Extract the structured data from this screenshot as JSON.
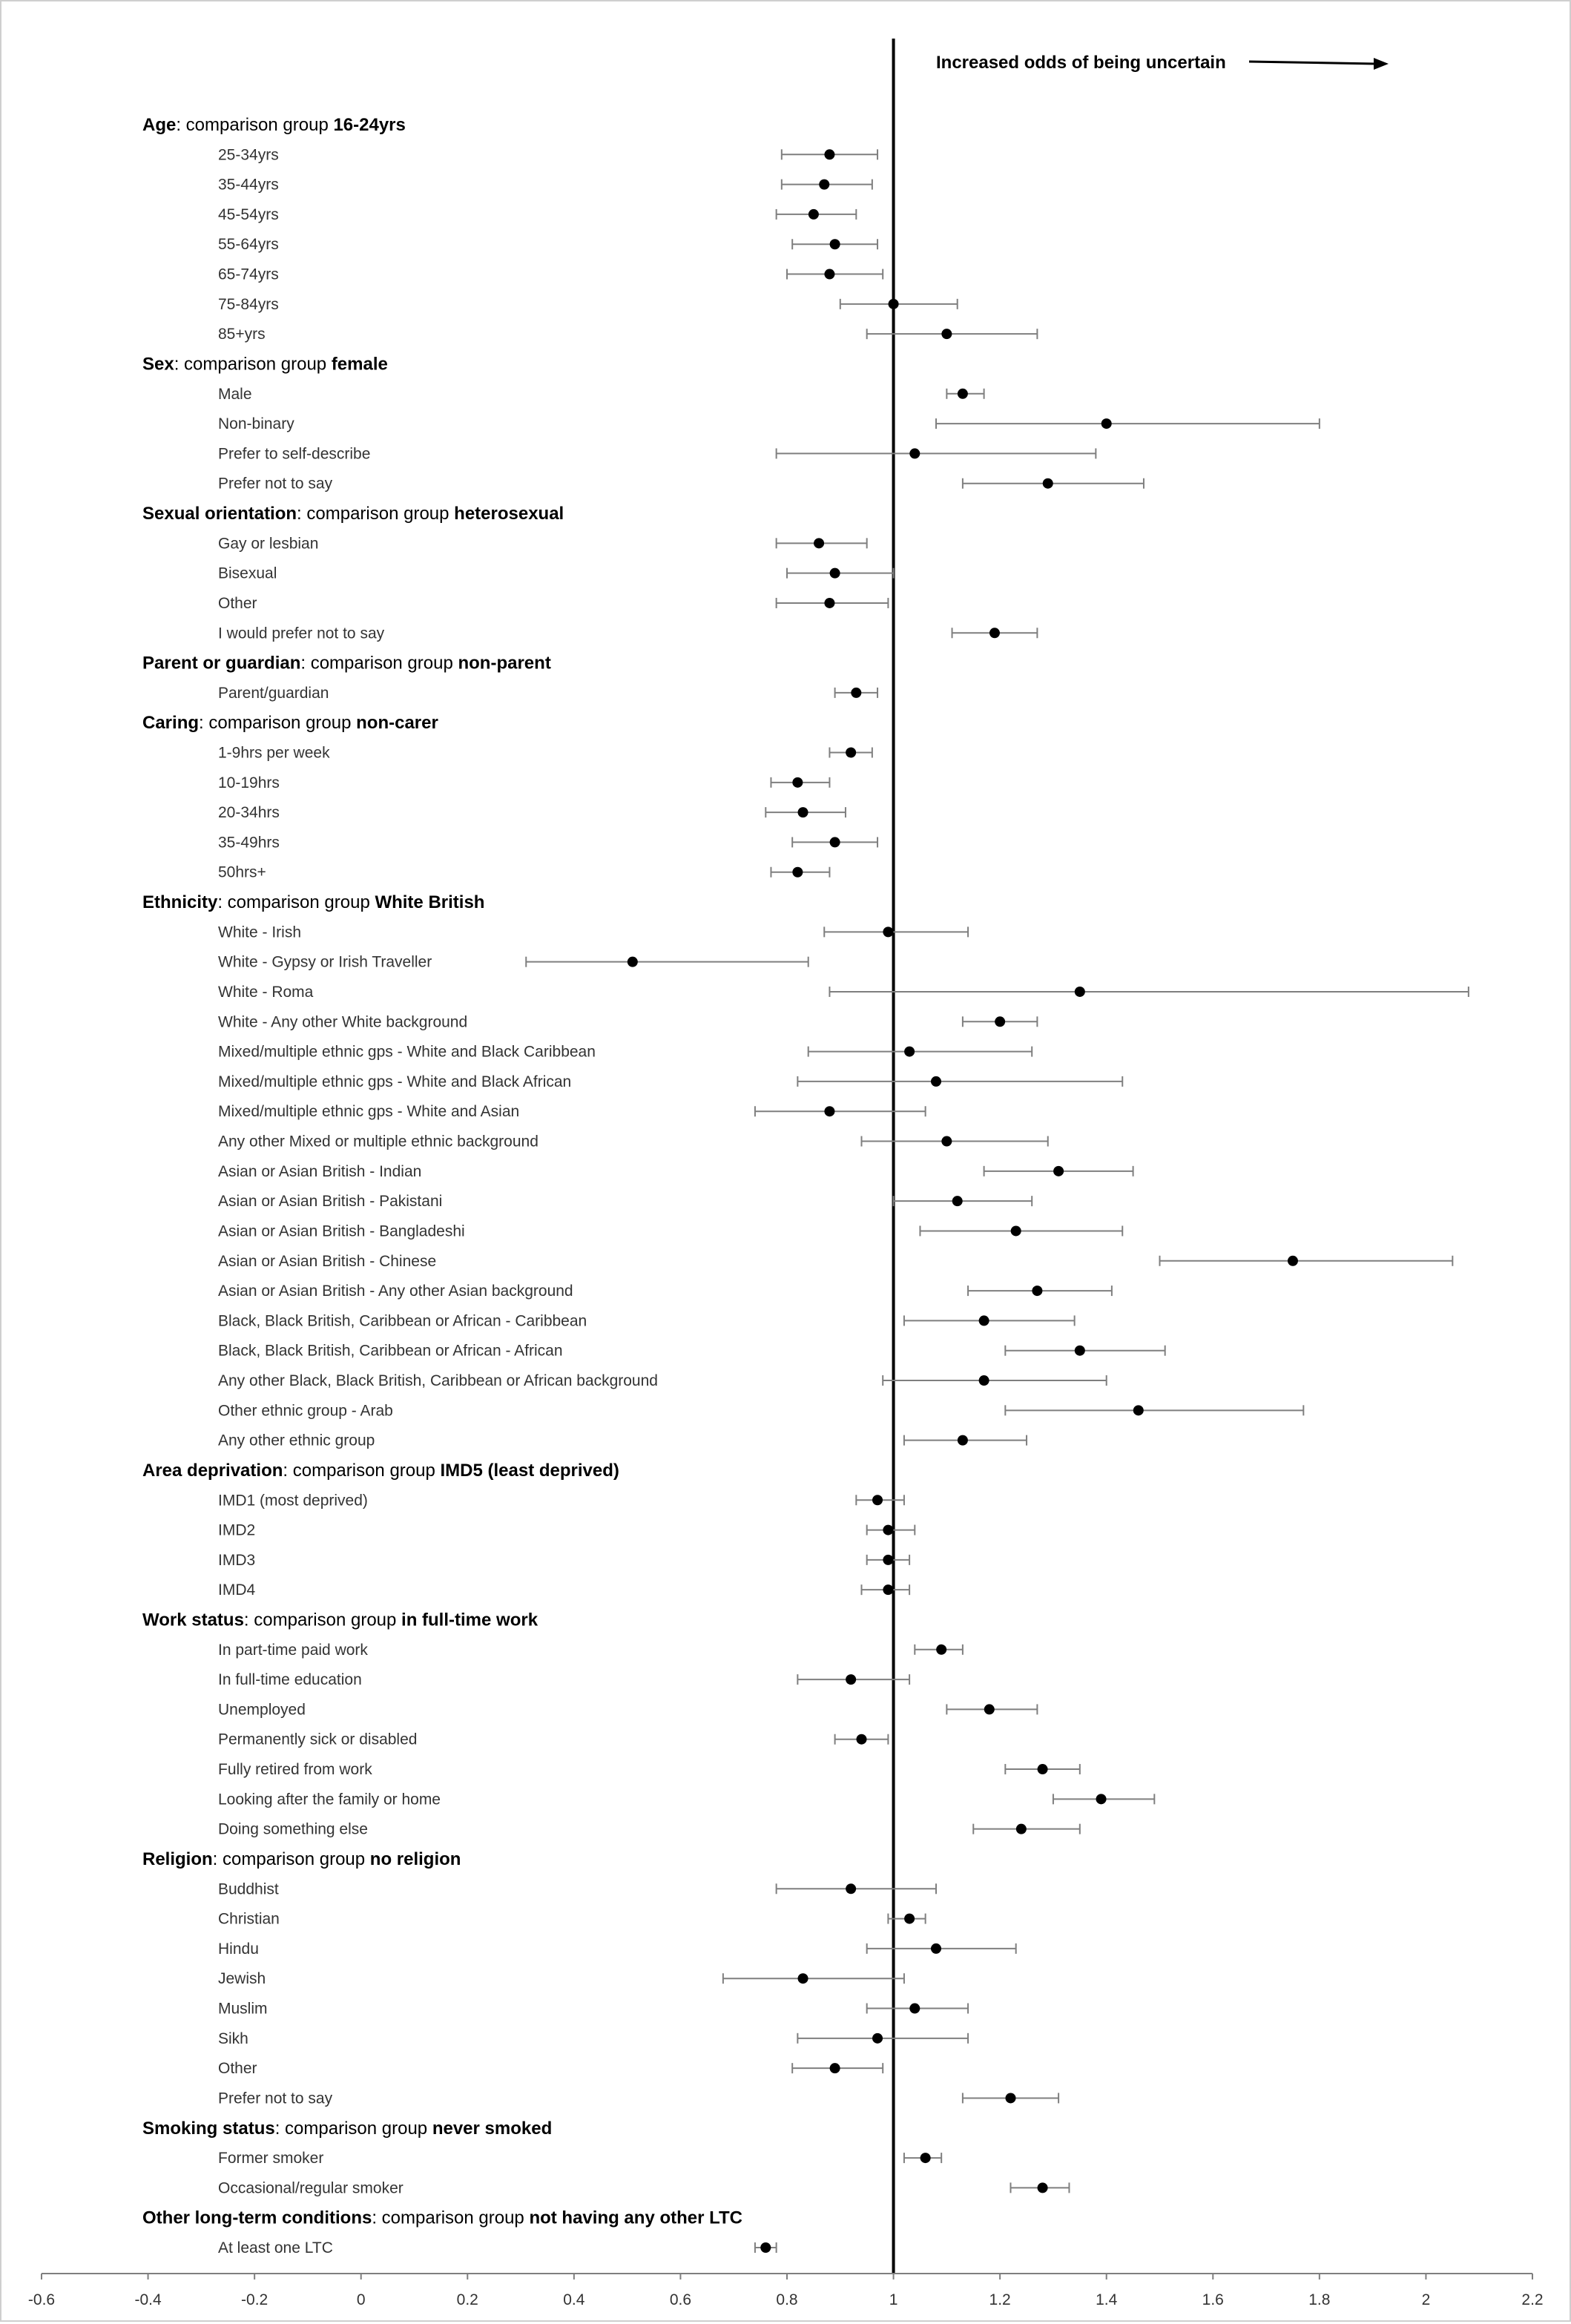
{
  "chart_data": {
    "type": "forest-plot",
    "annotation": "Increased odds of being uncertain",
    "reference_line": 1,
    "xlim": [
      -0.6,
      2.2
    ],
    "x_ticks": [
      "-0.6",
      "-0.4",
      "-0.2",
      "0",
      "0.2",
      "0.4",
      "0.6",
      "0.8",
      "1",
      "1.2",
      "1.4",
      "1.6",
      "1.8",
      "2",
      "2.2"
    ],
    "groups": [
      {
        "name": "Age",
        "comparison": "comparison group ",
        "reference": "16-24yrs",
        "rows": [
          {
            "label": "25-34yrs",
            "or": 0.88,
            "lo": 0.79,
            "hi": 0.97
          },
          {
            "label": "35-44yrs",
            "or": 0.87,
            "lo": 0.79,
            "hi": 0.96
          },
          {
            "label": "45-54yrs",
            "or": 0.85,
            "lo": 0.78,
            "hi": 0.93
          },
          {
            "label": "55-64yrs",
            "or": 0.89,
            "lo": 0.81,
            "hi": 0.97
          },
          {
            "label": "65-74yrs",
            "or": 0.88,
            "lo": 0.8,
            "hi": 0.98
          },
          {
            "label": "75-84yrs",
            "or": 1.0,
            "lo": 0.9,
            "hi": 1.12
          },
          {
            "label": "85+yrs",
            "or": 1.1,
            "lo": 0.95,
            "hi": 1.27
          }
        ]
      },
      {
        "name": "Sex",
        "comparison": "comparison group ",
        "reference": "female",
        "rows": [
          {
            "label": "Male",
            "or": 1.13,
            "lo": 1.1,
            "hi": 1.17
          },
          {
            "label": "Non-binary",
            "or": 1.4,
            "lo": 1.08,
            "hi": 1.8
          },
          {
            "label": "Prefer to self-describe",
            "or": 1.04,
            "lo": 0.78,
            "hi": 1.38
          },
          {
            "label": "Prefer not to say",
            "or": 1.29,
            "lo": 1.13,
            "hi": 1.47
          }
        ]
      },
      {
        "name": "Sexual orientation",
        "comparison": "comparison group ",
        "reference": "heterosexual",
        "rows": [
          {
            "label": "Gay or lesbian",
            "or": 0.86,
            "lo": 0.78,
            "hi": 0.95
          },
          {
            "label": "Bisexual",
            "or": 0.89,
            "lo": 0.8,
            "hi": 1.0
          },
          {
            "label": "Other",
            "or": 0.88,
            "lo": 0.78,
            "hi": 0.99
          },
          {
            "label": "I would prefer not to say",
            "or": 1.19,
            "lo": 1.11,
            "hi": 1.27
          }
        ]
      },
      {
        "name": "Parent or guardian",
        "comparison": "comparison group ",
        "reference": "non-parent",
        "rows": [
          {
            "label": "Parent/guardian",
            "or": 0.93,
            "lo": 0.89,
            "hi": 0.97
          }
        ]
      },
      {
        "name": "Caring",
        "comparison": "comparison group ",
        "reference": "non-carer",
        "rows": [
          {
            "label": "1-9hrs per week",
            "or": 0.92,
            "lo": 0.88,
            "hi": 0.96
          },
          {
            "label": "10-19hrs",
            "or": 0.82,
            "lo": 0.77,
            "hi": 0.88
          },
          {
            "label": "20-34hrs",
            "or": 0.83,
            "lo": 0.76,
            "hi": 0.91
          },
          {
            "label": "35-49hrs",
            "or": 0.89,
            "lo": 0.81,
            "hi": 0.97
          },
          {
            "label": "50hrs+",
            "or": 0.82,
            "lo": 0.77,
            "hi": 0.88
          }
        ]
      },
      {
        "name": "Ethnicity",
        "comparison": "comparison group ",
        "reference": "White British",
        "rows": [
          {
            "label": "White - Irish",
            "or": 0.99,
            "lo": 0.87,
            "hi": 1.14
          },
          {
            "label": "White - Gypsy or Irish Traveller",
            "or": 0.51,
            "lo": 0.31,
            "hi": 0.84
          },
          {
            "label": "White - Roma",
            "or": 1.35,
            "lo": 0.88,
            "hi": 2.08
          },
          {
            "label": "White - Any other White background",
            "or": 1.2,
            "lo": 1.13,
            "hi": 1.27
          },
          {
            "label": "Mixed/multiple ethnic gps - White and Black Caribbean",
            "or": 1.03,
            "lo": 0.84,
            "hi": 1.26
          },
          {
            "label": "Mixed/multiple ethnic gps - White and Black African",
            "or": 1.08,
            "lo": 0.82,
            "hi": 1.43
          },
          {
            "label": "Mixed/multiple ethnic gps - White and Asian",
            "or": 0.88,
            "lo": 0.74,
            "hi": 1.06
          },
          {
            "label": "Any other Mixed or multiple ethnic background",
            "or": 1.1,
            "lo": 0.94,
            "hi": 1.29
          },
          {
            "label": "Asian or Asian British - Indian",
            "or": 1.31,
            "lo": 1.17,
            "hi": 1.45
          },
          {
            "label": "Asian or Asian British - Pakistani",
            "or": 1.12,
            "lo": 1.0,
            "hi": 1.26
          },
          {
            "label": "Asian or Asian British - Bangladeshi",
            "or": 1.23,
            "lo": 1.05,
            "hi": 1.43
          },
          {
            "label": "Asian or Asian British - Chinese",
            "or": 1.75,
            "lo": 1.5,
            "hi": 2.05
          },
          {
            "label": "Asian or Asian British - Any other Asian background",
            "or": 1.27,
            "lo": 1.14,
            "hi": 1.41
          },
          {
            "label": "Black, Black British, Caribbean or African - Caribbean",
            "or": 1.17,
            "lo": 1.02,
            "hi": 1.34
          },
          {
            "label": "Black, Black British, Caribbean or African - African",
            "or": 1.35,
            "lo": 1.21,
            "hi": 1.51
          },
          {
            "label": "Any other Black, Black British, Caribbean or African background",
            "or": 1.17,
            "lo": 0.98,
            "hi": 1.4
          },
          {
            "label": "Other ethnic group - Arab",
            "or": 1.46,
            "lo": 1.21,
            "hi": 1.77
          },
          {
            "label": "Any other ethnic group",
            "or": 1.13,
            "lo": 1.02,
            "hi": 1.25
          }
        ]
      },
      {
        "name": "Area deprivation",
        "comparison": "comparison group ",
        "reference": "IMD5 (least deprived)",
        "rows": [
          {
            "label": "IMD1 (most deprived)",
            "or": 0.97,
            "lo": 0.93,
            "hi": 1.02
          },
          {
            "label": "IMD2",
            "or": 0.99,
            "lo": 0.95,
            "hi": 1.04
          },
          {
            "label": "IMD3",
            "or": 0.99,
            "lo": 0.95,
            "hi": 1.03
          },
          {
            "label": "IMD4",
            "or": 0.99,
            "lo": 0.94,
            "hi": 1.03
          }
        ]
      },
      {
        "name": "Work status",
        "comparison": "comparison group ",
        "reference": "in full-time work",
        "rows": [
          {
            "label": "In part-time paid work",
            "or": 1.09,
            "lo": 1.04,
            "hi": 1.13
          },
          {
            "label": "In full-time education",
            "or": 0.92,
            "lo": 0.82,
            "hi": 1.03
          },
          {
            "label": "Unemployed",
            "or": 1.18,
            "lo": 1.1,
            "hi": 1.27
          },
          {
            "label": "Permanently sick or disabled",
            "or": 0.94,
            "lo": 0.89,
            "hi": 0.99
          },
          {
            "label": "Fully retired from work",
            "or": 1.28,
            "lo": 1.21,
            "hi": 1.35
          },
          {
            "label": "Looking after the family or home",
            "or": 1.39,
            "lo": 1.3,
            "hi": 1.49
          },
          {
            "label": "Doing something else",
            "or": 1.24,
            "lo": 1.15,
            "hi": 1.35
          }
        ]
      },
      {
        "name": "Religion",
        "comparison": "comparison group ",
        "reference": "no religion",
        "rows": [
          {
            "label": "Buddhist",
            "or": 0.92,
            "lo": 0.78,
            "hi": 1.08
          },
          {
            "label": "Christian",
            "or": 1.03,
            "lo": 0.99,
            "hi": 1.06
          },
          {
            "label": "Hindu",
            "or": 1.08,
            "lo": 0.95,
            "hi": 1.23
          },
          {
            "label": "Jewish",
            "or": 0.83,
            "lo": 0.68,
            "hi": 1.02
          },
          {
            "label": "Muslim",
            "or": 1.04,
            "lo": 0.95,
            "hi": 1.14
          },
          {
            "label": "Sikh",
            "or": 0.97,
            "lo": 0.82,
            "hi": 1.14
          },
          {
            "label": "Other",
            "or": 0.89,
            "lo": 0.81,
            "hi": 0.98
          },
          {
            "label": "Prefer not to say",
            "or": 1.22,
            "lo": 1.13,
            "hi": 1.31
          }
        ]
      },
      {
        "name": "Smoking status",
        "comparison": "comparison group ",
        "reference": "never smoked",
        "rows": [
          {
            "label": "Former smoker",
            "or": 1.06,
            "lo": 1.02,
            "hi": 1.09
          },
          {
            "label": "Occasional/regular smoker",
            "or": 1.28,
            "lo": 1.22,
            "hi": 1.33
          }
        ]
      },
      {
        "name": "Other long-term conditions",
        "comparison": "comparison group ",
        "reference": "not having any other LTC",
        "rows": [
          {
            "label": "At least one LTC",
            "or": 0.76,
            "lo": 0.74,
            "hi": 0.78
          }
        ]
      }
    ]
  }
}
